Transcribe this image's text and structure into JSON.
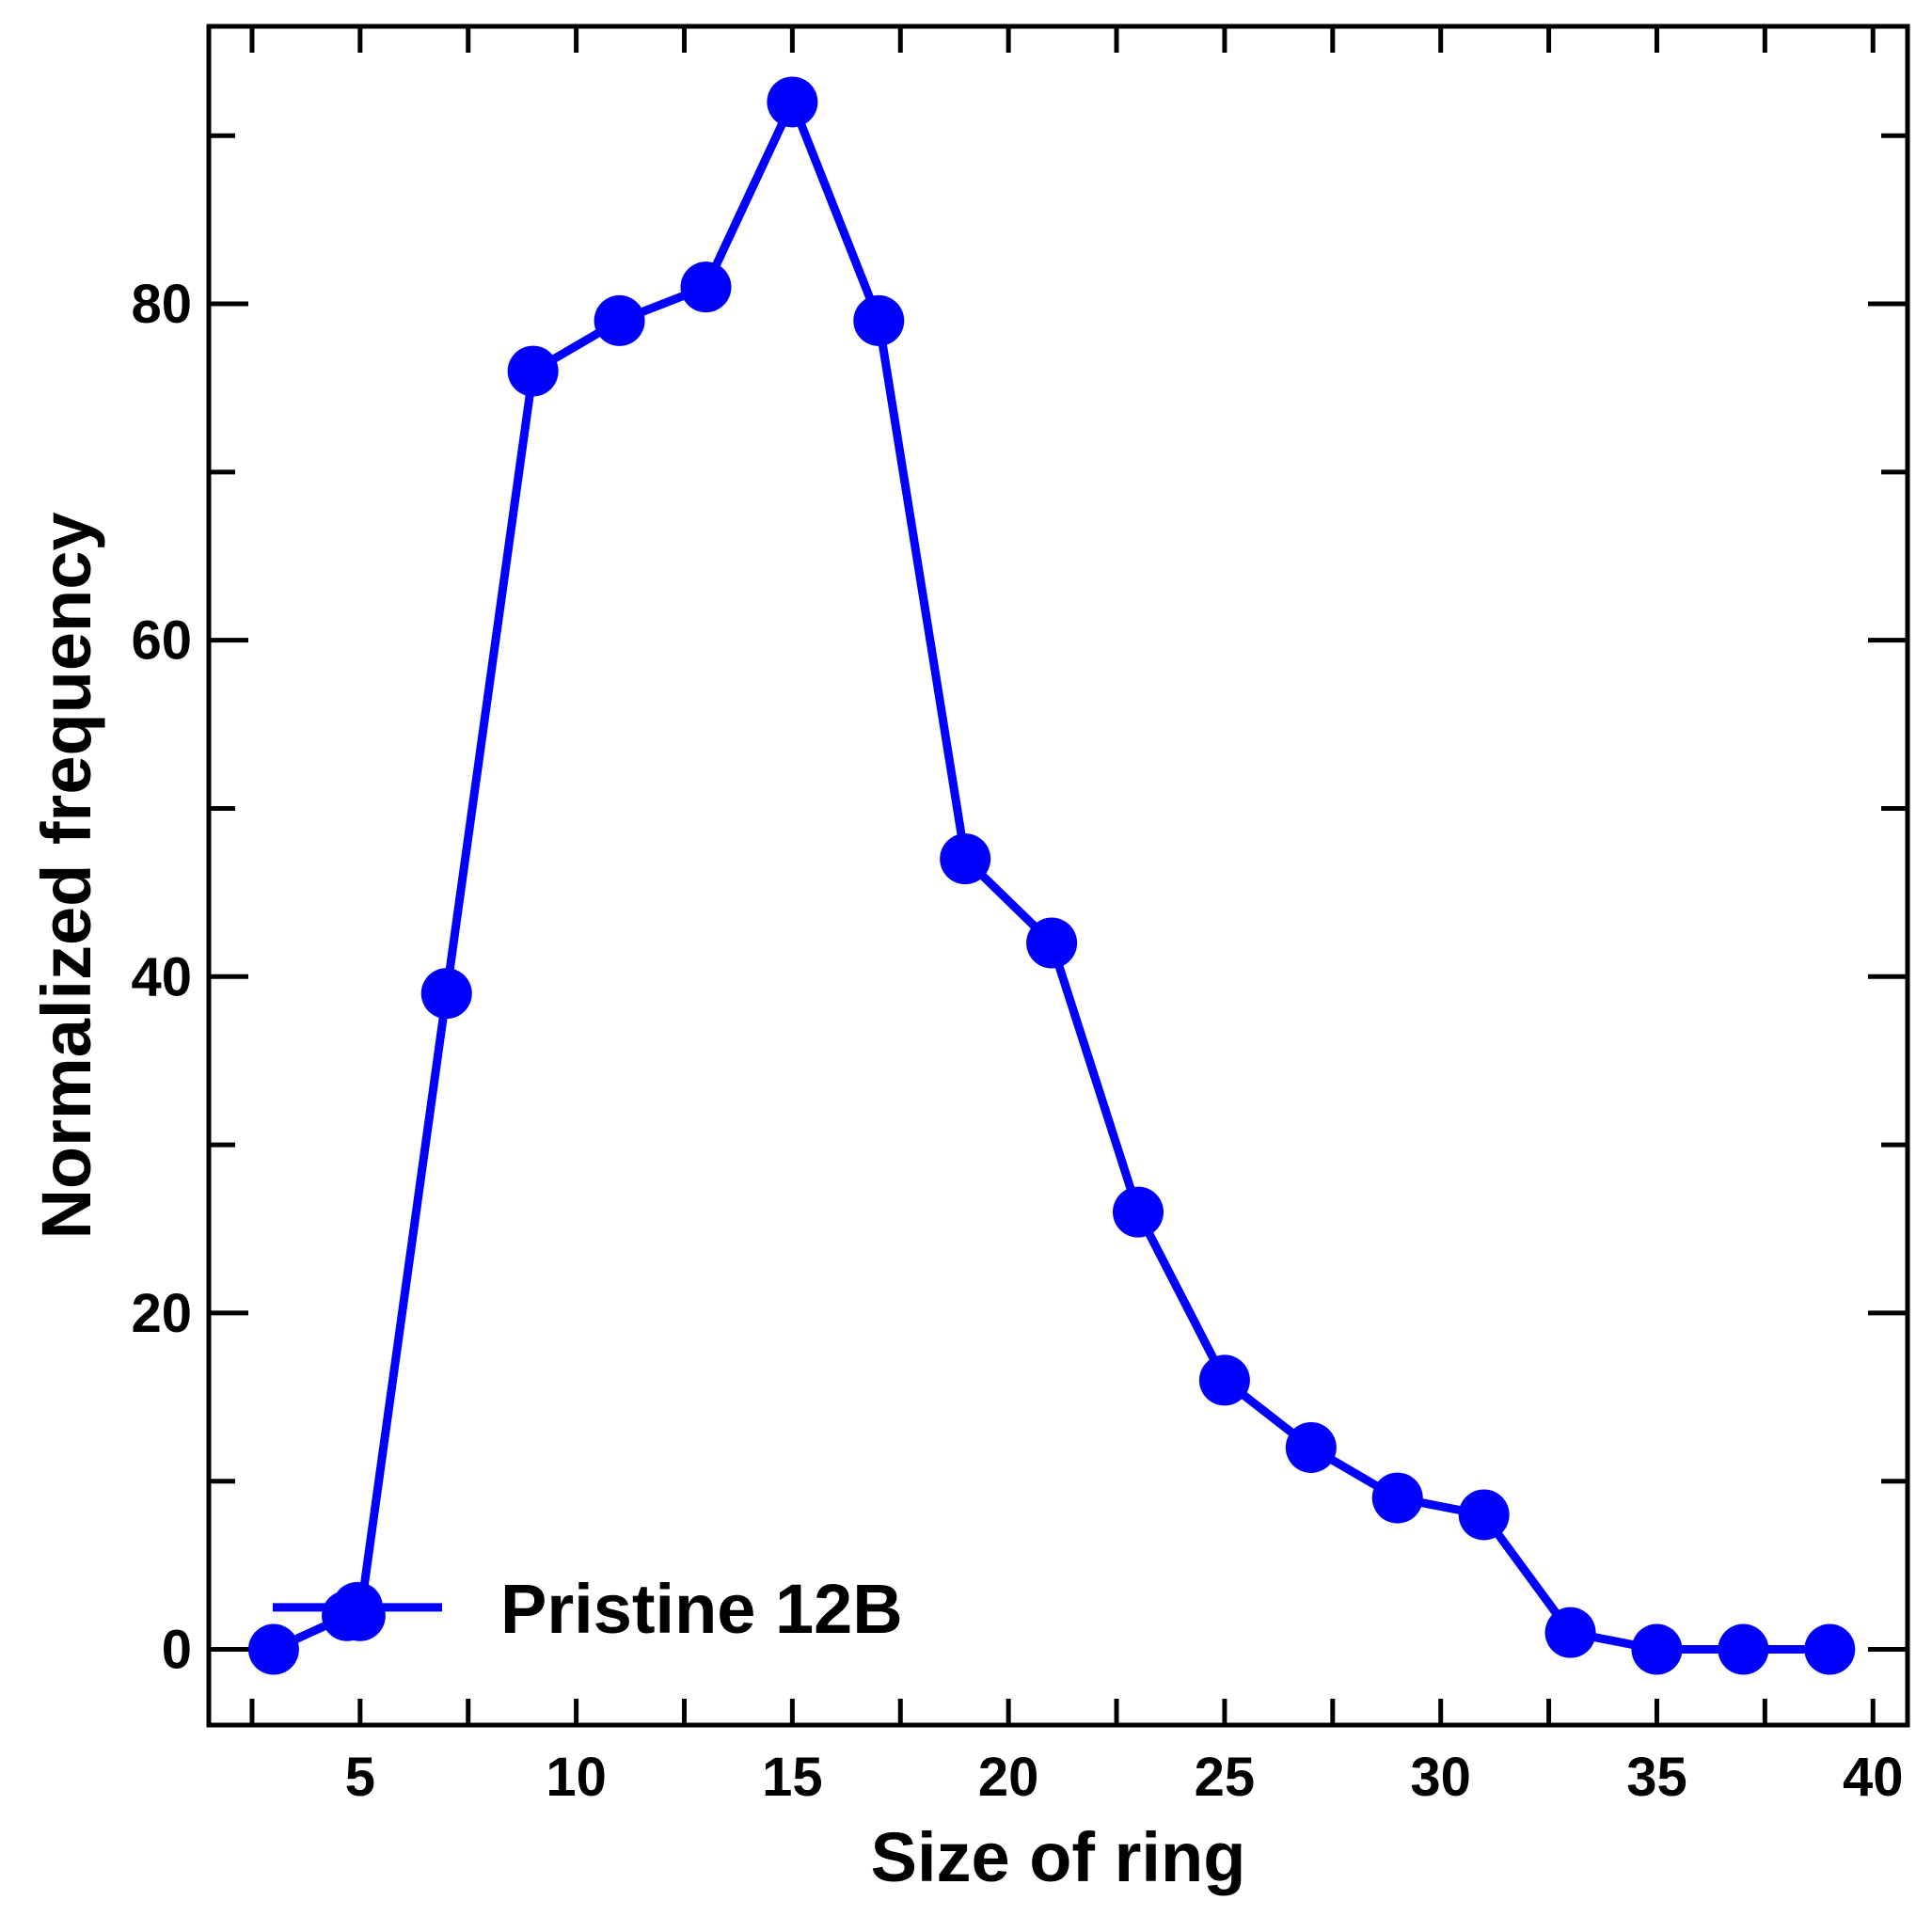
{
  "chart_data": {
    "type": "line",
    "xlabel": "Size of ring",
    "ylabel": "Normalized frequency",
    "xlim": [
      1.5,
      40.8
    ],
    "ylim": [
      -4.5,
      96.5
    ],
    "x_major_ticks": [
      5,
      10,
      15,
      20,
      25,
      30,
      35,
      40
    ],
    "x_minor_ticks": [
      2.5,
      7.5,
      12.5,
      17.5,
      22.5,
      27.5,
      32.5,
      37.5
    ],
    "y_major_ticks": [
      0,
      20,
      40,
      60,
      80
    ],
    "y_minor_ticks": [
      10,
      30,
      50,
      70,
      90
    ],
    "legend_position": "bottom-left",
    "grid": false,
    "series": [
      {
        "name": "Pristine 12B",
        "color": "#0000ff",
        "marker": "circle",
        "x": [
          3,
          4.7,
          5,
          7,
          9,
          11,
          13,
          15,
          17,
          19,
          21,
          23,
          25,
          27,
          29,
          31,
          33,
          35,
          37,
          39
        ],
        "y": [
          0,
          2,
          2,
          39,
          76,
          79,
          81,
          92,
          79,
          47,
          42,
          26,
          16,
          12,
          9,
          8,
          1,
          0,
          0,
          0
        ]
      }
    ]
  }
}
